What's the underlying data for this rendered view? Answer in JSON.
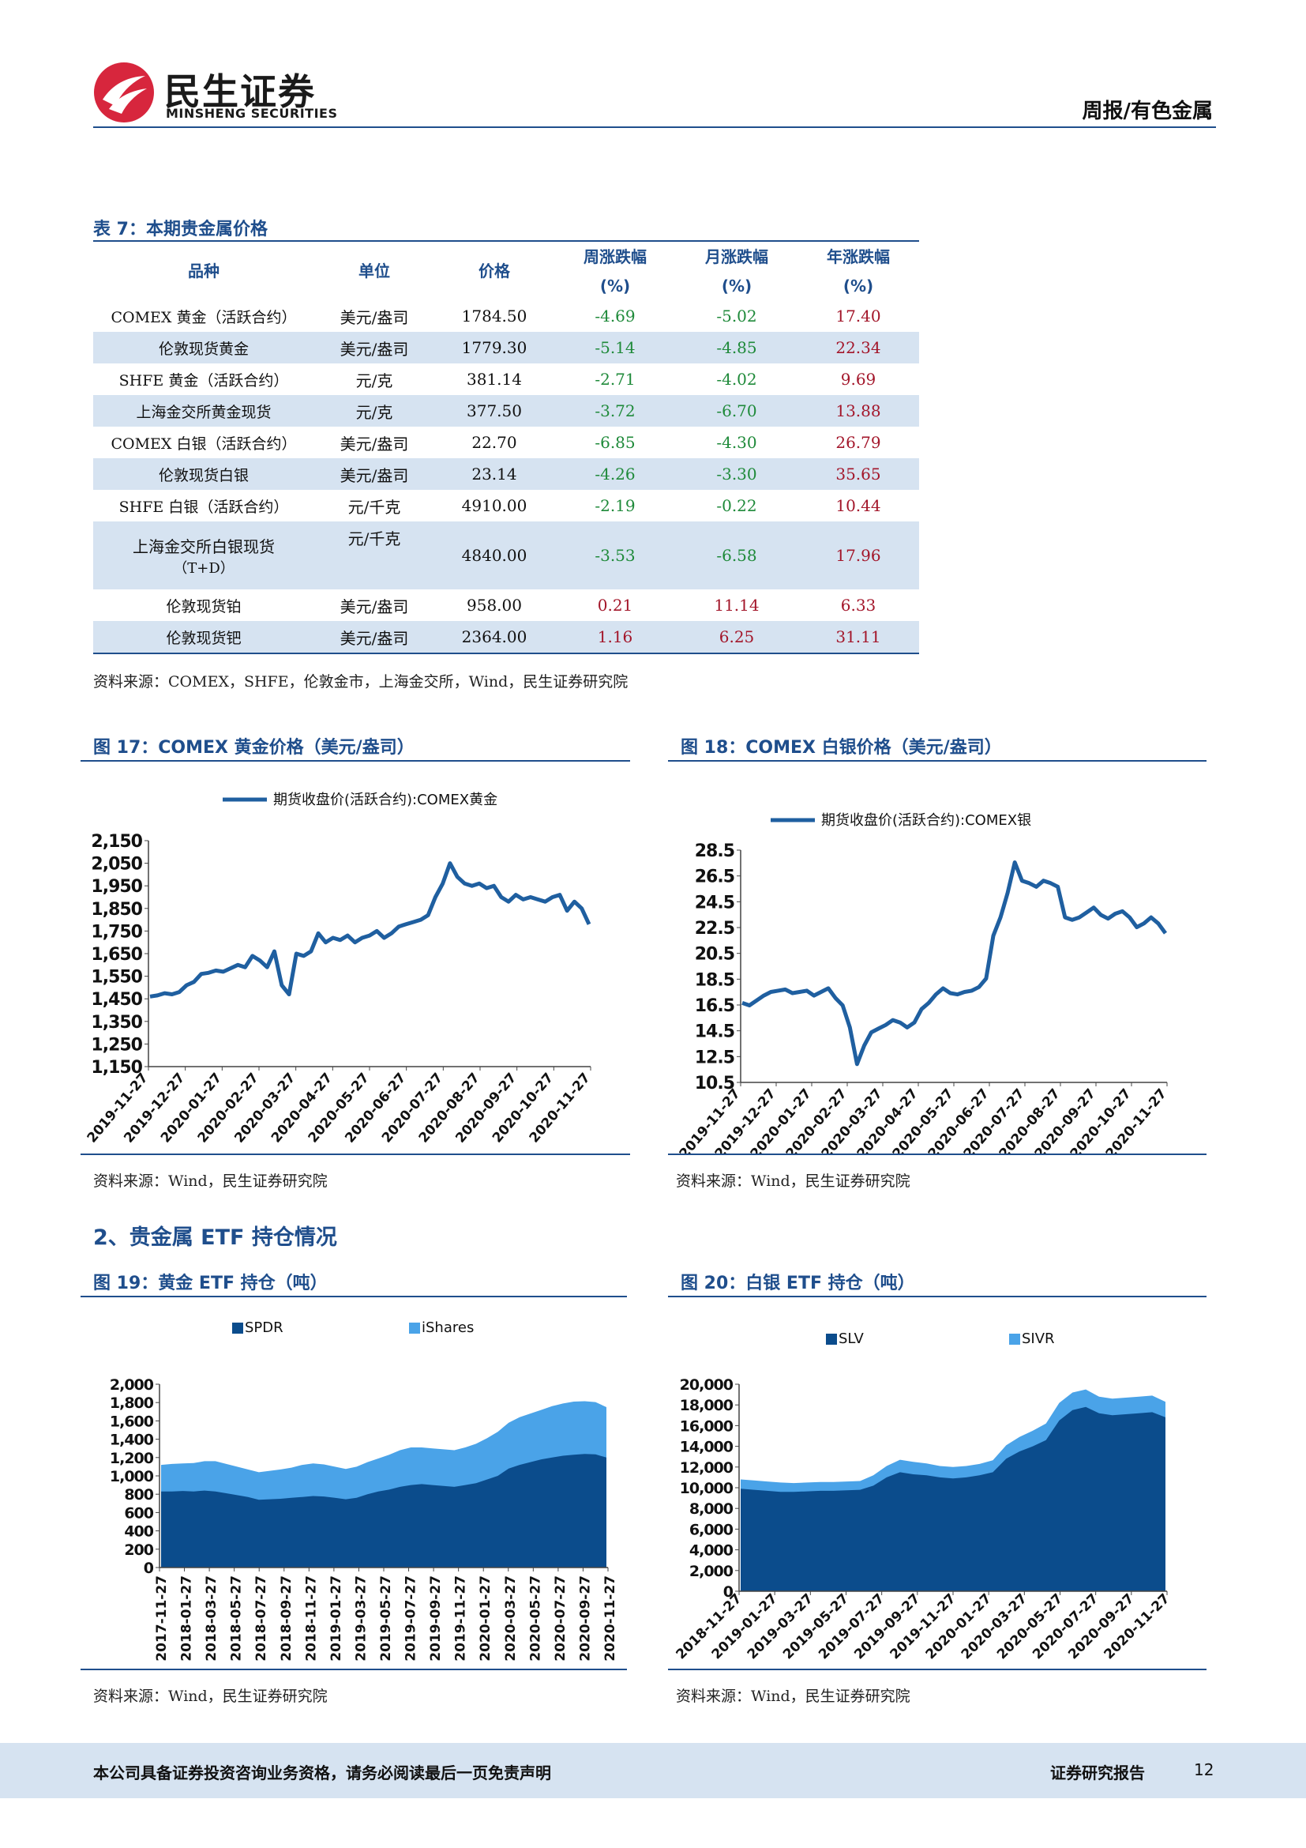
{
  "header": {
    "logo_cn": "民生证券",
    "logo_en": "MINSHENG SECURITIES",
    "report_type": "周报/有色金属"
  },
  "table7": {
    "caption": "表 7：本期贵金属价格",
    "headers": [
      "品种",
      "单位",
      "价格",
      "周涨跌幅",
      "月涨跌幅",
      "年涨跌幅"
    ],
    "unit_row": [
      "(%)",
      "(%)",
      "(%)"
    ],
    "rows": [
      {
        "name": "COMEX 黄金（活跃合约）",
        "unit": "美元/盎司",
        "price": "1784.50",
        "week": "-4.69",
        "month": "-5.02",
        "year": "17.40"
      },
      {
        "name": "伦敦现货黄金",
        "unit": "美元/盎司",
        "price": "1779.30",
        "week": "-5.14",
        "month": "-4.85",
        "year": "22.34"
      },
      {
        "name": "SHFE 黄金（活跃合约）",
        "unit": "元/克",
        "price": "381.14",
        "week": "-2.71",
        "month": "-4.02",
        "year": "9.69"
      },
      {
        "name": "上海金交所黄金现货",
        "unit": "元/克",
        "price": "377.50",
        "week": "-3.72",
        "month": "-6.70",
        "year": "13.88"
      },
      {
        "name": "COMEX 白银（活跃合约）",
        "unit": "美元/盎司",
        "price": "22.70",
        "week": "-6.85",
        "month": "-4.30",
        "year": "26.79"
      },
      {
        "name": "伦敦现货白银",
        "unit": "美元/盎司",
        "price": "23.14",
        "week": "-4.26",
        "month": "-3.30",
        "year": "35.65"
      },
      {
        "name": "SHFE 白银（活跃合约）",
        "unit": "元/千克",
        "price": "4910.00",
        "week": "-2.19",
        "month": "-0.22",
        "year": "10.44"
      },
      {
        "name": "上海金交所白银现货",
        "name2": "（T+D）",
        "unit": "元/千克",
        "price": "4840.00",
        "week": "-3.53",
        "month": "-6.58",
        "year": "17.96"
      },
      {
        "name": "伦敦现货铂",
        "unit": "美元/盎司",
        "price": "958.00",
        "week": "0.21",
        "month": "11.14",
        "year": "6.33"
      },
      {
        "name": "伦敦现货钯",
        "unit": "美元/盎司",
        "price": "2364.00",
        "week": "1.16",
        "month": "6.25",
        "year": "31.11"
      }
    ],
    "source": "资料来源：COMEX，SHFE，伦敦金市，上海金交所，Wind，民生证券研究院"
  },
  "fig17": {
    "caption": "图 17：COMEX 黄金价格（美元/盎司）",
    "source": "资料来源：Wind，民生证券研究院"
  },
  "fig18": {
    "caption": "图 18：COMEX 白银价格（美元/盎司）",
    "source": "资料来源：Wind，民生证券研究院"
  },
  "section2": {
    "title": "2、贵金属 ETF 持仓情况"
  },
  "fig19": {
    "caption": "图 19：黄金 ETF 持仓（吨）",
    "source": "资料来源：Wind，民生证券研究院"
  },
  "fig20": {
    "caption": "图 20：白银 ETF 持仓（吨）",
    "source": "资料来源：Wind，民生证券研究院"
  },
  "chart_data": [
    {
      "type": "line",
      "legend": [
        "期货收盘价(活跃合约):COMEX黄金"
      ],
      "ylim": [
        1150,
        2150
      ],
      "yticks": [
        "2,150",
        "2,050",
        "1,950",
        "1,850",
        "1,750",
        "1,650",
        "1,550",
        "1,450",
        "1,350",
        "1,250",
        "1,150"
      ],
      "xticks": [
        "2019-11-27",
        "2019-12-27",
        "2020-01-27",
        "2020-02-27",
        "2020-03-27",
        "2020-04-27",
        "2020-05-27",
        "2020-06-27",
        "2020-07-27",
        "2020-08-27",
        "2020-09-27",
        "2020-10-27",
        "2020-11-27"
      ],
      "color": "#1f5fa0",
      "series": [
        {
          "name": "期货收盘价(活跃合约):COMEX黄金",
          "values": [
            1460,
            1465,
            1475,
            1470,
            1480,
            1510,
            1525,
            1560,
            1565,
            1575,
            1570,
            1585,
            1600,
            1590,
            1640,
            1620,
            1590,
            1660,
            1510,
            1470,
            1650,
            1640,
            1660,
            1740,
            1700,
            1720,
            1710,
            1730,
            1700,
            1720,
            1730,
            1750,
            1720,
            1740,
            1770,
            1780,
            1790,
            1800,
            1820,
            1900,
            1960,
            2050,
            1990,
            1960,
            1950,
            1960,
            1940,
            1950,
            1900,
            1880,
            1910,
            1890,
            1900,
            1890,
            1880,
            1900,
            1910,
            1840,
            1880,
            1850,
            1780
          ]
        }
      ]
    },
    {
      "type": "line",
      "legend": [
        "期货收盘价(活跃合约):COMEX银"
      ],
      "ylim": [
        10.5,
        29.5
      ],
      "yticks": [
        "28.5",
        "26.5",
        "24.5",
        "22.5",
        "20.5",
        "18.5",
        "16.5",
        "14.5",
        "12.5",
        "10.5"
      ],
      "xticks": [
        "2019-11-27",
        "2019-12-27",
        "2020-01-27",
        "2020-02-27",
        "2020-03-27",
        "2020-04-27",
        "2020-05-27",
        "2020-06-27",
        "2020-07-27",
        "2020-08-27",
        "2020-09-27",
        "2020-10-27",
        "2020-11-27"
      ],
      "color": "#1f5fa0",
      "series": [
        {
          "name": "期货收盘价(活跃合约):COMEX银",
          "values": [
            17.0,
            16.8,
            17.2,
            17.6,
            17.9,
            18.0,
            18.1,
            17.8,
            17.9,
            18.0,
            17.6,
            17.9,
            18.2,
            17.4,
            16.8,
            15.0,
            12.0,
            13.5,
            14.6,
            14.9,
            15.2,
            15.6,
            15.4,
            15.0,
            15.4,
            16.5,
            17.0,
            17.7,
            18.2,
            17.8,
            17.7,
            17.9,
            18.0,
            18.3,
            19.0,
            22.5,
            24.0,
            26.0,
            28.5,
            27.0,
            26.8,
            26.5,
            27.0,
            26.8,
            26.5,
            24.0,
            23.8,
            24.0,
            24.4,
            24.8,
            24.2,
            23.9,
            24.3,
            24.5,
            24.0,
            23.2,
            23.5,
            24.0,
            23.5,
            22.7
          ]
        }
      ]
    },
    {
      "type": "area",
      "stacked": true,
      "legend": [
        "SPDR",
        "iShares"
      ],
      "ylim": [
        0,
        2000
      ],
      "yticks": [
        "2,000",
        "1,800",
        "1,600",
        "1,400",
        "1,200",
        "1,000",
        "800",
        "600",
        "400",
        "200",
        "0"
      ],
      "xticks": [
        "2017-11-27",
        "2018-01-27",
        "2018-03-27",
        "2018-05-27",
        "2018-07-27",
        "2018-09-27",
        "2018-11-27",
        "2019-01-27",
        "2019-03-27",
        "2019-05-27",
        "2019-07-27",
        "2019-09-27",
        "2019-11-27",
        "2020-01-27",
        "2020-03-27",
        "2020-05-27",
        "2020-07-27",
        "2020-09-27",
        "2020-11-27"
      ],
      "colors": [
        "#0b4c8c",
        "#4aa3e8"
      ],
      "series": [
        {
          "name": "SPDR",
          "values": [
            830,
            830,
            835,
            830,
            840,
            830,
            810,
            790,
            770,
            740,
            745,
            750,
            760,
            770,
            780,
            775,
            760,
            745,
            760,
            800,
            830,
            850,
            880,
            900,
            910,
            900,
            890,
            880,
            900,
            920,
            960,
            1000,
            1080,
            1120,
            1150,
            1180,
            1200,
            1220,
            1230,
            1240,
            1235,
            1200
          ]
        },
        {
          "name": "iShares",
          "values": [
            290,
            300,
            300,
            310,
            320,
            330,
            320,
            310,
            300,
            300,
            310,
            320,
            330,
            350,
            355,
            350,
            340,
            330,
            340,
            350,
            360,
            380,
            400,
            410,
            400,
            400,
            400,
            400,
            410,
            430,
            450,
            480,
            500,
            520,
            530,
            540,
            560,
            570,
            580,
            575,
            570,
            550
          ]
        }
      ]
    },
    {
      "type": "area",
      "stacked": true,
      "legend": [
        "SLV",
        "SIVR"
      ],
      "ylim": [
        0,
        20000
      ],
      "yticks": [
        "20,000",
        "18,000",
        "16,000",
        "14,000",
        "12,000",
        "10,000",
        "8,000",
        "6,000",
        "4,000",
        "2,000",
        "0"
      ],
      "xticks": [
        "2018-11-27",
        "2019-01-27",
        "2019-03-27",
        "2019-05-27",
        "2019-07-27",
        "2019-09-27",
        "2019-11-27",
        "2020-01-27",
        "2020-03-27",
        "2020-05-27",
        "2020-07-27",
        "2020-09-27",
        "2020-11-27"
      ],
      "colors": [
        "#0b4c8c",
        "#4aa3e8"
      ],
      "series": [
        {
          "name": "SLV",
          "values": [
            9900,
            9800,
            9700,
            9600,
            9600,
            9650,
            9700,
            9700,
            9750,
            9800,
            10200,
            11000,
            11500,
            11300,
            11200,
            11000,
            10900,
            11000,
            11200,
            11500,
            12800,
            13500,
            14000,
            14600,
            16500,
            17500,
            17800,
            17200,
            17000,
            17100,
            17200,
            17300,
            16800
          ]
        },
        {
          "name": "SIVR",
          "values": [
            900,
            900,
            900,
            900,
            850,
            850,
            850,
            850,
            850,
            850,
            1000,
            1100,
            1200,
            1200,
            1150,
            1100,
            1100,
            1100,
            1100,
            1150,
            1300,
            1400,
            1500,
            1600,
            1700,
            1700,
            1700,
            1600,
            1600,
            1600,
            1600,
            1600,
            1500
          ]
        }
      ]
    }
  ],
  "footer": {
    "disclaimer": "本公司具备证券投资咨询业务资格，请务必阅读最后一页免责声明",
    "label": "证券研究报告",
    "page": "12"
  }
}
